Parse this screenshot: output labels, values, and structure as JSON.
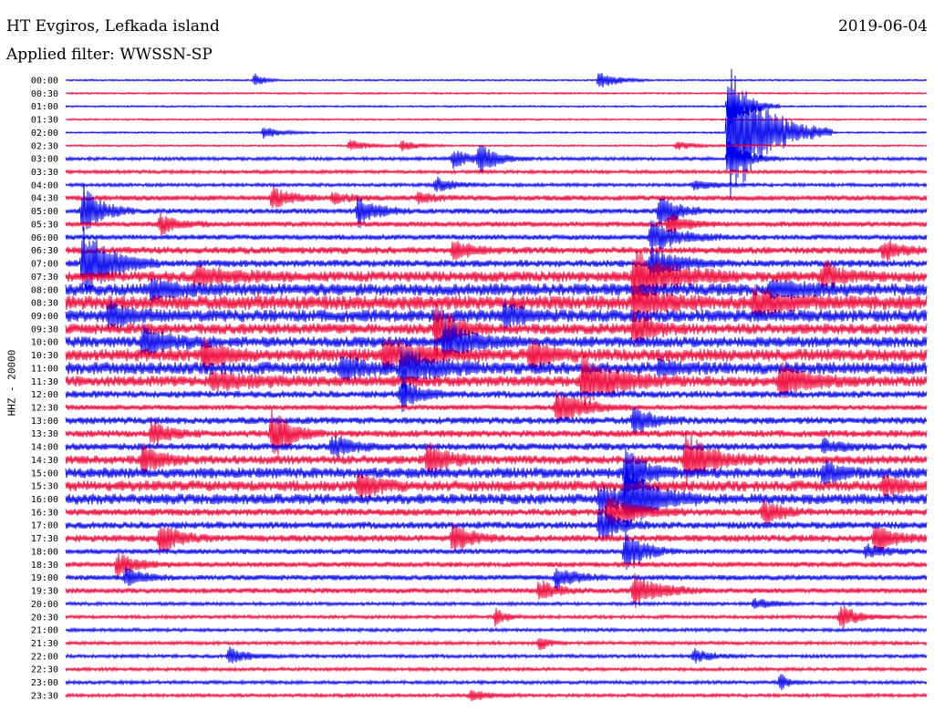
{
  "header": {
    "station": "HT Evgiros, Lefkada island",
    "date": "2019-06-04",
    "filter": "Applied filter: WWSSN-SP"
  },
  "chart_data": {
    "type": "line",
    "chart_kind": "helicorder",
    "title": "HT Evgiros, Lefkada island",
    "subtitle": "Applied filter: WWSSN-SP",
    "ylabel": "HHZ - 20000",
    "date": "2019-06-04",
    "colors": {
      "even_rows": "#0000ee",
      "odd_rows": "#ee0033"
    },
    "row_labels": [
      "00:00",
      "00:30",
      "01:00",
      "01:30",
      "02:00",
      "02:30",
      "03:00",
      "03:30",
      "04:00",
      "04:30",
      "05:00",
      "05:30",
      "06:00",
      "06:30",
      "07:00",
      "07:30",
      "08:00",
      "08:30",
      "09:00",
      "09:30",
      "10:00",
      "10:30",
      "11:00",
      "11:30",
      "12:00",
      "12:30",
      "13:00",
      "13:30",
      "14:00",
      "14:30",
      "15:00",
      "15:30",
      "16:00",
      "16:30",
      "17:00",
      "17:30",
      "18:00",
      "18:30",
      "19:00",
      "19:30",
      "20:00",
      "20:30",
      "21:00",
      "21:30",
      "22:00",
      "22:30",
      "23:00",
      "23:30"
    ],
    "noise_level": [
      1,
      1,
      1,
      1,
      1,
      1,
      2,
      2,
      2,
      3,
      3,
      3,
      3,
      4,
      4,
      6,
      7,
      8,
      7,
      6,
      6,
      7,
      7,
      6,
      4,
      3,
      4,
      4,
      4,
      5,
      6,
      6,
      6,
      4,
      4,
      4,
      3,
      3,
      3,
      3,
      2,
      2,
      2,
      2,
      2,
      2,
      2,
      2
    ],
    "events": [
      {
        "row": 0,
        "x": 0.22,
        "amp": 8,
        "dur": 0.01
      },
      {
        "row": 0,
        "x": 0.62,
        "amp": 10,
        "dur": 0.02
      },
      {
        "row": 2,
        "x": 0.77,
        "amp": 30,
        "dur": 0.02
      },
      {
        "row": 4,
        "x": 0.77,
        "amp": 85,
        "dur": 0.04
      },
      {
        "row": 4,
        "x": 0.23,
        "amp": 7,
        "dur": 0.02
      },
      {
        "row": 5,
        "x": 0.33,
        "amp": 7,
        "dur": 0.02
      },
      {
        "row": 5,
        "x": 0.39,
        "amp": 6,
        "dur": 0.02
      },
      {
        "row": 5,
        "x": 0.71,
        "amp": 5,
        "dur": 0.02
      },
      {
        "row": 6,
        "x": 0.45,
        "amp": 12,
        "dur": 0.02
      },
      {
        "row": 6,
        "x": 0.48,
        "amp": 16,
        "dur": 0.02
      },
      {
        "row": 6,
        "x": 0.77,
        "amp": 22,
        "dur": 0.02
      },
      {
        "row": 8,
        "x": 0.43,
        "amp": 9,
        "dur": 0.02
      },
      {
        "row": 8,
        "x": 0.73,
        "amp": 6,
        "dur": 0.02
      },
      {
        "row": 9,
        "x": 0.24,
        "amp": 12,
        "dur": 0.02
      },
      {
        "row": 9,
        "x": 0.31,
        "amp": 6,
        "dur": 0.02
      },
      {
        "row": 9,
        "x": 0.41,
        "amp": 6,
        "dur": 0.02
      },
      {
        "row": 10,
        "x": 0.02,
        "amp": 30,
        "dur": 0.02
      },
      {
        "row": 10,
        "x": 0.34,
        "amp": 18,
        "dur": 0.02
      },
      {
        "row": 10,
        "x": 0.69,
        "amp": 20,
        "dur": 0.02
      },
      {
        "row": 11,
        "x": 0.11,
        "amp": 12,
        "dur": 0.02
      },
      {
        "row": 11,
        "x": 0.7,
        "amp": 12,
        "dur": 0.02
      },
      {
        "row": 12,
        "x": 0.68,
        "amp": 18,
        "dur": 0.03
      },
      {
        "row": 13,
        "x": 0.45,
        "amp": 12,
        "dur": 0.02
      },
      {
        "row": 13,
        "x": 0.95,
        "amp": 12,
        "dur": 0.02
      },
      {
        "row": 14,
        "x": 0.02,
        "amp": 40,
        "dur": 0.03
      },
      {
        "row": 14,
        "x": 0.68,
        "amp": 16,
        "dur": 0.03
      },
      {
        "row": 15,
        "x": 0.15,
        "amp": 10,
        "dur": 0.04
      },
      {
        "row": 15,
        "x": 0.66,
        "amp": 30,
        "dur": 0.04
      },
      {
        "row": 15,
        "x": 0.88,
        "amp": 16,
        "dur": 0.02
      },
      {
        "row": 16,
        "x": 0.1,
        "amp": 10,
        "dur": 0.03
      },
      {
        "row": 16,
        "x": 0.82,
        "amp": 8,
        "dur": 0.04
      },
      {
        "row": 17,
        "x": 0.66,
        "amp": 18,
        "dur": 0.03
      },
      {
        "row": 17,
        "x": 0.8,
        "amp": 14,
        "dur": 0.03
      },
      {
        "row": 18,
        "x": 0.05,
        "amp": 16,
        "dur": 0.02
      },
      {
        "row": 18,
        "x": 0.51,
        "amp": 14,
        "dur": 0.02
      },
      {
        "row": 19,
        "x": 0.43,
        "amp": 30,
        "dur": 0.02
      },
      {
        "row": 19,
        "x": 0.66,
        "amp": 20,
        "dur": 0.02
      },
      {
        "row": 20,
        "x": 0.09,
        "amp": 16,
        "dur": 0.03
      },
      {
        "row": 20,
        "x": 0.44,
        "amp": 24,
        "dur": 0.03
      },
      {
        "row": 21,
        "x": 0.16,
        "amp": 18,
        "dur": 0.02
      },
      {
        "row": 21,
        "x": 0.37,
        "amp": 18,
        "dur": 0.04
      },
      {
        "row": 21,
        "x": 0.54,
        "amp": 18,
        "dur": 0.02
      },
      {
        "row": 22,
        "x": 0.32,
        "amp": 14,
        "dur": 0.02
      },
      {
        "row": 22,
        "x": 0.39,
        "amp": 24,
        "dur": 0.03
      },
      {
        "row": 22,
        "x": 0.69,
        "amp": 8,
        "dur": 0.02
      },
      {
        "row": 23,
        "x": 0.17,
        "amp": 10,
        "dur": 0.04
      },
      {
        "row": 23,
        "x": 0.6,
        "amp": 26,
        "dur": 0.04
      },
      {
        "row": 23,
        "x": 0.83,
        "amp": 18,
        "dur": 0.03
      },
      {
        "row": 24,
        "x": 0.39,
        "amp": 18,
        "dur": 0.02
      },
      {
        "row": 25,
        "x": 0.57,
        "amp": 20,
        "dur": 0.03
      },
      {
        "row": 26,
        "x": 0.66,
        "amp": 16,
        "dur": 0.02
      },
      {
        "row": 27,
        "x": 0.1,
        "amp": 14,
        "dur": 0.02
      },
      {
        "row": 27,
        "x": 0.24,
        "amp": 30,
        "dur": 0.02
      },
      {
        "row": 28,
        "x": 0.31,
        "amp": 14,
        "dur": 0.02
      },
      {
        "row": 28,
        "x": 0.88,
        "amp": 8,
        "dur": 0.02
      },
      {
        "row": 29,
        "x": 0.09,
        "amp": 16,
        "dur": 0.02
      },
      {
        "row": 29,
        "x": 0.42,
        "amp": 20,
        "dur": 0.02
      },
      {
        "row": 29,
        "x": 0.72,
        "amp": 30,
        "dur": 0.03
      },
      {
        "row": 30,
        "x": 0.65,
        "amp": 30,
        "dur": 0.02
      },
      {
        "row": 30,
        "x": 0.88,
        "amp": 12,
        "dur": 0.02
      },
      {
        "row": 31,
        "x": 0.34,
        "amp": 16,
        "dur": 0.02
      },
      {
        "row": 31,
        "x": 0.95,
        "amp": 10,
        "dur": 0.02
      },
      {
        "row": 32,
        "x": 0.62,
        "amp": 14,
        "dur": 0.03
      },
      {
        "row": 32,
        "x": 0.65,
        "amp": 34,
        "dur": 0.03
      },
      {
        "row": 33,
        "x": 0.63,
        "amp": 18,
        "dur": 0.03
      },
      {
        "row": 33,
        "x": 0.81,
        "amp": 14,
        "dur": 0.02
      },
      {
        "row": 34,
        "x": 0.62,
        "amp": 20,
        "dur": 0.02
      },
      {
        "row": 35,
        "x": 0.11,
        "amp": 20,
        "dur": 0.02
      },
      {
        "row": 35,
        "x": 0.45,
        "amp": 18,
        "dur": 0.02
      },
      {
        "row": 35,
        "x": 0.94,
        "amp": 16,
        "dur": 0.02
      },
      {
        "row": 36,
        "x": 0.65,
        "amp": 26,
        "dur": 0.02
      },
      {
        "row": 36,
        "x": 0.93,
        "amp": 8,
        "dur": 0.02
      },
      {
        "row": 37,
        "x": 0.06,
        "amp": 14,
        "dur": 0.02
      },
      {
        "row": 38,
        "x": 0.07,
        "amp": 10,
        "dur": 0.02
      },
      {
        "row": 38,
        "x": 0.57,
        "amp": 14,
        "dur": 0.02
      },
      {
        "row": 39,
        "x": 0.55,
        "amp": 12,
        "dur": 0.02
      },
      {
        "row": 39,
        "x": 0.66,
        "amp": 18,
        "dur": 0.03
      },
      {
        "row": 40,
        "x": 0.8,
        "amp": 6,
        "dur": 0.02
      },
      {
        "row": 41,
        "x": 0.5,
        "amp": 12,
        "dur": 0.01
      },
      {
        "row": 41,
        "x": 0.9,
        "amp": 14,
        "dur": 0.02
      },
      {
        "row": 43,
        "x": 0.55,
        "amp": 10,
        "dur": 0.01
      },
      {
        "row": 44,
        "x": 0.19,
        "amp": 10,
        "dur": 0.02
      },
      {
        "row": 44,
        "x": 0.73,
        "amp": 8,
        "dur": 0.02
      },
      {
        "row": 46,
        "x": 0.83,
        "amp": 10,
        "dur": 0.01
      },
      {
        "row": 47,
        "x": 0.47,
        "amp": 6,
        "dur": 0.02
      }
    ]
  }
}
